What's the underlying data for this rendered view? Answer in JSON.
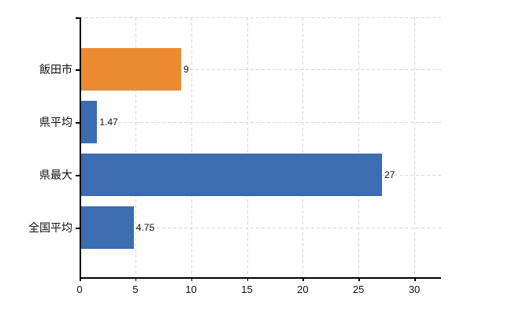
{
  "chart_data": {
    "type": "bar",
    "orientation": "horizontal",
    "title": "",
    "categories": [
      "飯田市",
      "県平均",
      "県最大",
      "全国平均"
    ],
    "values": [
      9,
      1.47,
      27,
      4.75
    ],
    "value_labels": [
      "9",
      "1.47",
      "27",
      "4.75"
    ],
    "series": [
      {
        "name": "",
        "values": [
          9,
          1.47,
          27,
          4.75
        ]
      }
    ],
    "bar_colors": [
      "#EC8A31",
      "#3B6DB0",
      "#3B6DB0",
      "#3B6DB0"
    ],
    "x_ticks": [
      0,
      5,
      10,
      15,
      20,
      25,
      30
    ],
    "x_tick_labels": [
      "0",
      "5",
      "10",
      "15",
      "20",
      "25",
      "30"
    ],
    "xlim": [
      0,
      32.4
    ],
    "xlabel": "",
    "ylabel": "",
    "legend": null,
    "grid": "on",
    "grid_style": "dashed",
    "grid_color": "#D9D9D9",
    "axis_color": "#000000",
    "text_color": "#111111",
    "background_color": "#FFFFFF"
  }
}
